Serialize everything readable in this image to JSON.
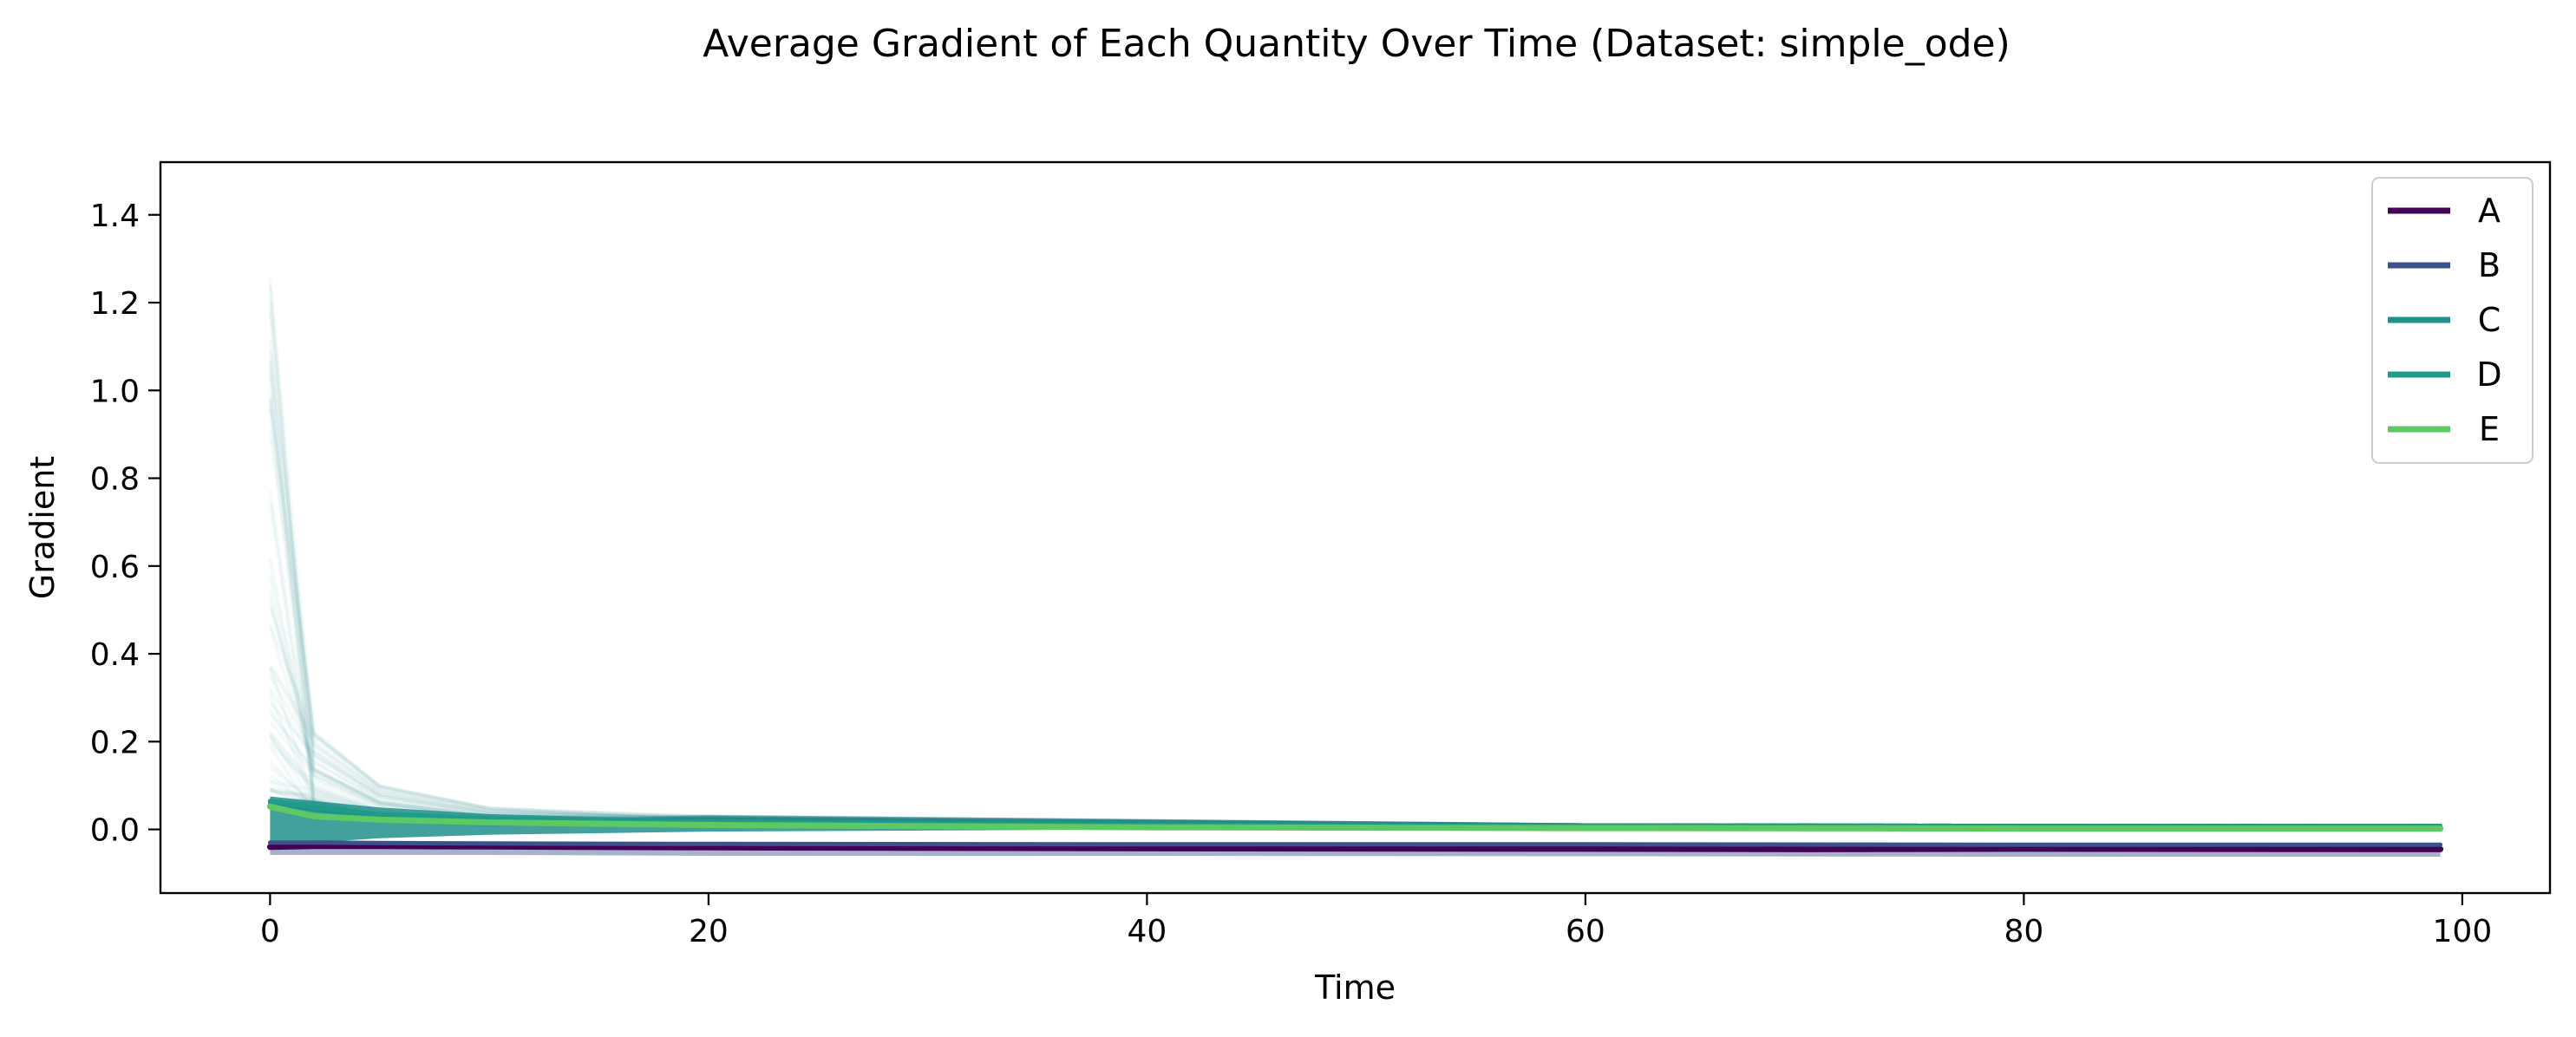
{
  "chart_data": {
    "type": "line",
    "title": "Average Gradient of Each Quantity Over Time (Dataset: simple_ode)",
    "xlabel": "Time",
    "ylabel": "Gradient",
    "xlim": [
      -5,
      104
    ],
    "ylim": [
      -0.145,
      1.52
    ],
    "xticks": [
      0,
      20,
      40,
      60,
      80,
      100
    ],
    "yticks": [
      0.0,
      0.2,
      0.4,
      0.6,
      0.8,
      1.0,
      1.2,
      1.4
    ],
    "xtick_labels": [
      "0",
      "20",
      "40",
      "60",
      "80",
      "100"
    ],
    "ytick_labels": [
      "0.0",
      "0.2",
      "0.4",
      "0.6",
      "0.8",
      "1.0",
      "1.2",
      "1.4"
    ],
    "grid": false,
    "legend_position": "top-right",
    "series": [
      {
        "name": "A",
        "color": "#440154",
        "x": [
          0,
          2,
          5,
          10,
          20,
          40,
          60,
          70,
          80,
          99
        ],
        "values": [
          -0.04,
          -0.038,
          -0.038,
          -0.039,
          -0.041,
          -0.043,
          -0.044,
          -0.045,
          -0.044,
          -0.045
        ]
      },
      {
        "name": "B",
        "color": "#3b528b",
        "x": [
          0,
          2,
          5,
          10,
          20,
          40,
          60,
          80,
          99
        ],
        "values": [
          -0.03,
          -0.03,
          -0.031,
          -0.032,
          -0.033,
          -0.034,
          -0.034,
          -0.035,
          -0.035
        ]
      },
      {
        "name": "C",
        "color": "#21918c",
        "x": [
          0,
          2,
          5,
          10,
          20,
          40,
          60,
          80,
          99
        ],
        "values": [
          0.06,
          0.045,
          0.03,
          0.022,
          0.012,
          0.006,
          0.004,
          0.003,
          0.003
        ]
      },
      {
        "name": "D",
        "color": "#1e9c89",
        "x": [
          0,
          2,
          5,
          10,
          20,
          40,
          60,
          80,
          99
        ],
        "values": [
          0.065,
          0.05,
          0.035,
          0.025,
          0.017,
          0.011,
          0.008,
          0.007,
          0.008
        ]
      },
      {
        "name": "E",
        "color": "#5ec962",
        "x": [
          0,
          2,
          5,
          10,
          20,
          40,
          60,
          80,
          99
        ],
        "values": [
          0.052,
          0.03,
          0.022,
          0.016,
          0.01,
          0.005,
          0.003,
          0.002,
          0.002
        ]
      }
    ]
  }
}
